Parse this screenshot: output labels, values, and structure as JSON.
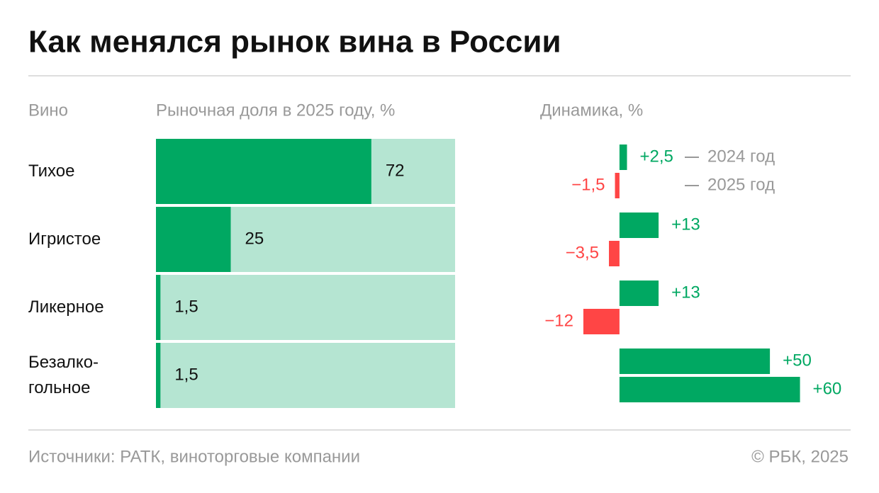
{
  "title": "Как менялся рынок вина в России",
  "footer": {
    "source": "Источники: РАТК, виноторговые компании",
    "copyright": "© РБК, 2025"
  },
  "chart_data": [
    {
      "type": "share_bar",
      "category_header": "Вино",
      "title": "Рыночная доля в 2025 году, %",
      "categories": [
        "Тихое",
        "Игристое",
        "Ликерное",
        "Безалко-\nгольное"
      ],
      "values": [
        72,
        25,
        1.5,
        1.5
      ],
      "value_labels": [
        "72",
        "25",
        "1,5",
        "1,5"
      ],
      "xlim": [
        0,
        100
      ],
      "color": "#00a862",
      "background_color": "#b5e5d2"
    },
    {
      "type": "diverging_bar",
      "title": "Динамика, %",
      "xlim": [
        -20,
        70
      ],
      "positive_color": "#00a862",
      "negative_color": "#ff4545",
      "series": [
        {
          "name": "2024 год",
          "values": [
            2.5,
            13,
            13,
            50
          ],
          "value_labels": [
            "+2,5",
            "+13",
            "+13",
            "+50"
          ]
        },
        {
          "name": "2025 год",
          "values": [
            -1.5,
            -3.5,
            -12,
            60
          ],
          "value_labels": [
            "−1,5",
            "−3,5",
            "−12",
            "+60"
          ]
        }
      ]
    }
  ]
}
